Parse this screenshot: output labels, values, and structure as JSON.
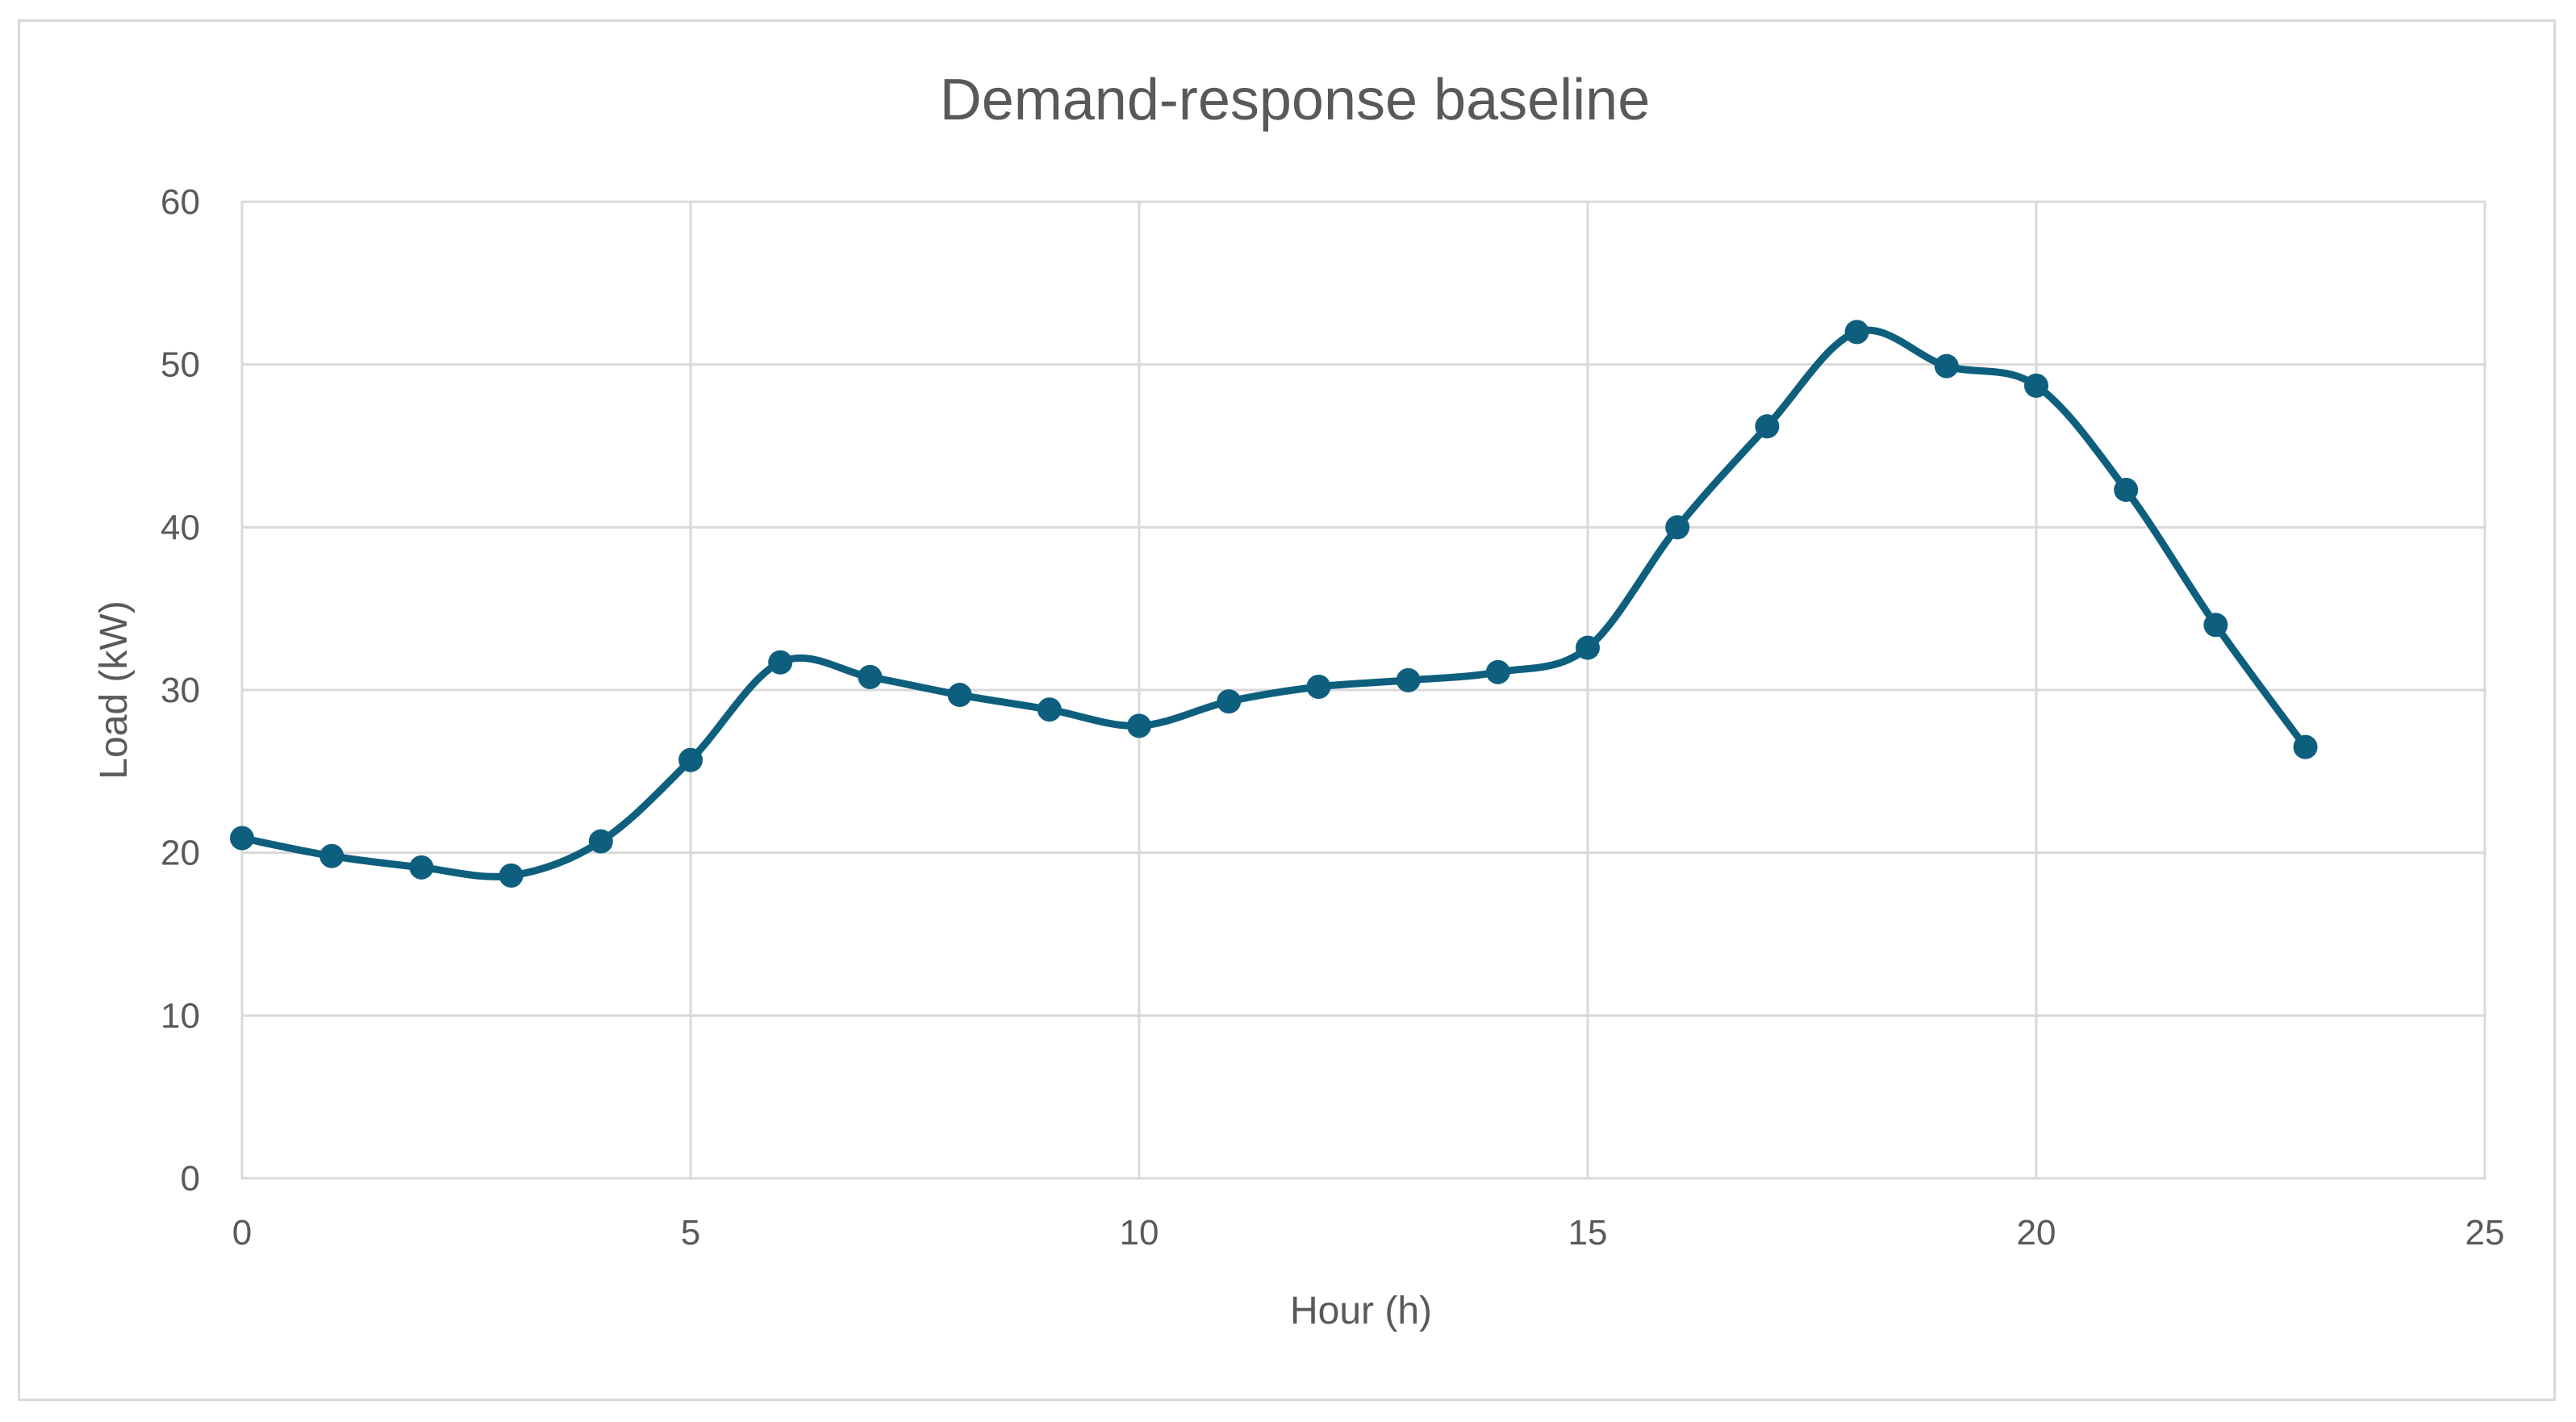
{
  "chart_data": {
    "type": "line",
    "title": "Demand-response baseline",
    "xlabel": "Hour (h)",
    "ylabel": "Load (kW)",
    "xlim": [
      0,
      25
    ],
    "ylim": [
      0,
      60
    ],
    "x_ticks": [
      0,
      5,
      10,
      15,
      20,
      25
    ],
    "y_ticks": [
      0,
      10,
      20,
      30,
      40,
      50,
      60
    ],
    "x_tick_labels": [
      "0",
      "5",
      "10",
      "15",
      "20",
      "25"
    ],
    "y_tick_labels": [
      "0",
      "10",
      "20",
      "30",
      "40",
      "50",
      "60"
    ],
    "grid": true,
    "smooth": true,
    "legend": "none",
    "series": [
      {
        "color": "#0e5f7e",
        "x": [
          0,
          1,
          2,
          3,
          4,
          5,
          6,
          7,
          8,
          9,
          10,
          11,
          12,
          13,
          14,
          15,
          16,
          17,
          18,
          19,
          20,
          21,
          22,
          23
        ],
        "y": [
          20.9,
          19.8,
          19.1,
          18.6,
          20.7,
          25.7,
          31.7,
          30.8,
          29.7,
          28.8,
          27.8,
          29.3,
          30.2,
          30.6,
          31.1,
          32.6,
          40.0,
          46.2,
          52.0,
          49.9,
          48.7,
          42.3,
          34.0,
          26.5
        ]
      }
    ]
  }
}
